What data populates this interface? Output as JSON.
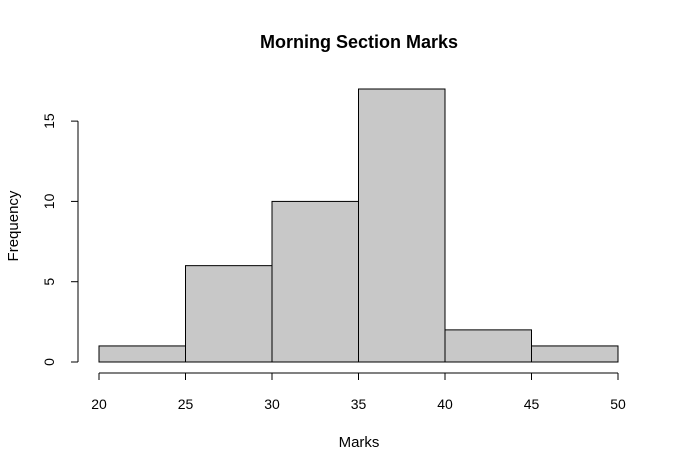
{
  "chart_data": {
    "type": "bar",
    "title": "Morning Section Marks",
    "xlabel": "Marks",
    "ylabel": "Frequency",
    "bins": [
      {
        "from": 20,
        "to": 25,
        "count": 1
      },
      {
        "from": 25,
        "to": 30,
        "count": 6
      },
      {
        "from": 30,
        "to": 35,
        "count": 10
      },
      {
        "from": 35,
        "to": 40,
        "count": 17
      },
      {
        "from": 40,
        "to": 45,
        "count": 2
      },
      {
        "from": 45,
        "to": 50,
        "count": 1
      }
    ],
    "x_ticks": [
      20,
      25,
      30,
      35,
      40,
      45,
      50
    ],
    "y_ticks": [
      0,
      5,
      10,
      15
    ],
    "xlim": [
      20,
      50
    ],
    "ylim": [
      0,
      17
    ],
    "grid": false,
    "bar_color": "#c8c8c8",
    "edge_color": "#000000"
  }
}
